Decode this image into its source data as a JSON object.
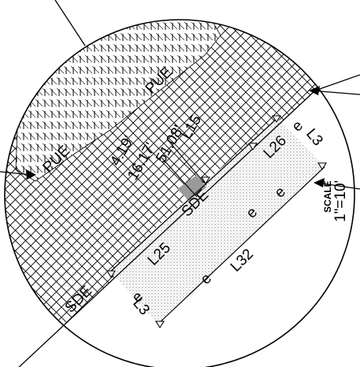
{
  "title": "",
  "labels": {
    "pue_left": "PUE",
    "pue_top": "PUE",
    "sde_left": "SDE",
    "sde_mid": "SDE",
    "l15": "L15",
    "l25": "L25",
    "l26": "L26",
    "l32": "L32",
    "l3_bottom": "L3",
    "l3_right": "L3",
    "e_1": "e",
    "e_2": "e",
    "e_3": "e",
    "e_4": "e",
    "e_5": "e",
    "dim_a": "51.08'",
    "dim_b": "16.17'",
    "dim_c": "4.19'"
  },
  "scale": {
    "heading": "SCALE",
    "value": "1\"=10'"
  },
  "colors": {
    "line": "#000000",
    "background": "#ffffff",
    "stipple": "#9a9a9a"
  },
  "hatch": [
    "crosshatch",
    "vertical-dash",
    "stipple"
  ]
}
